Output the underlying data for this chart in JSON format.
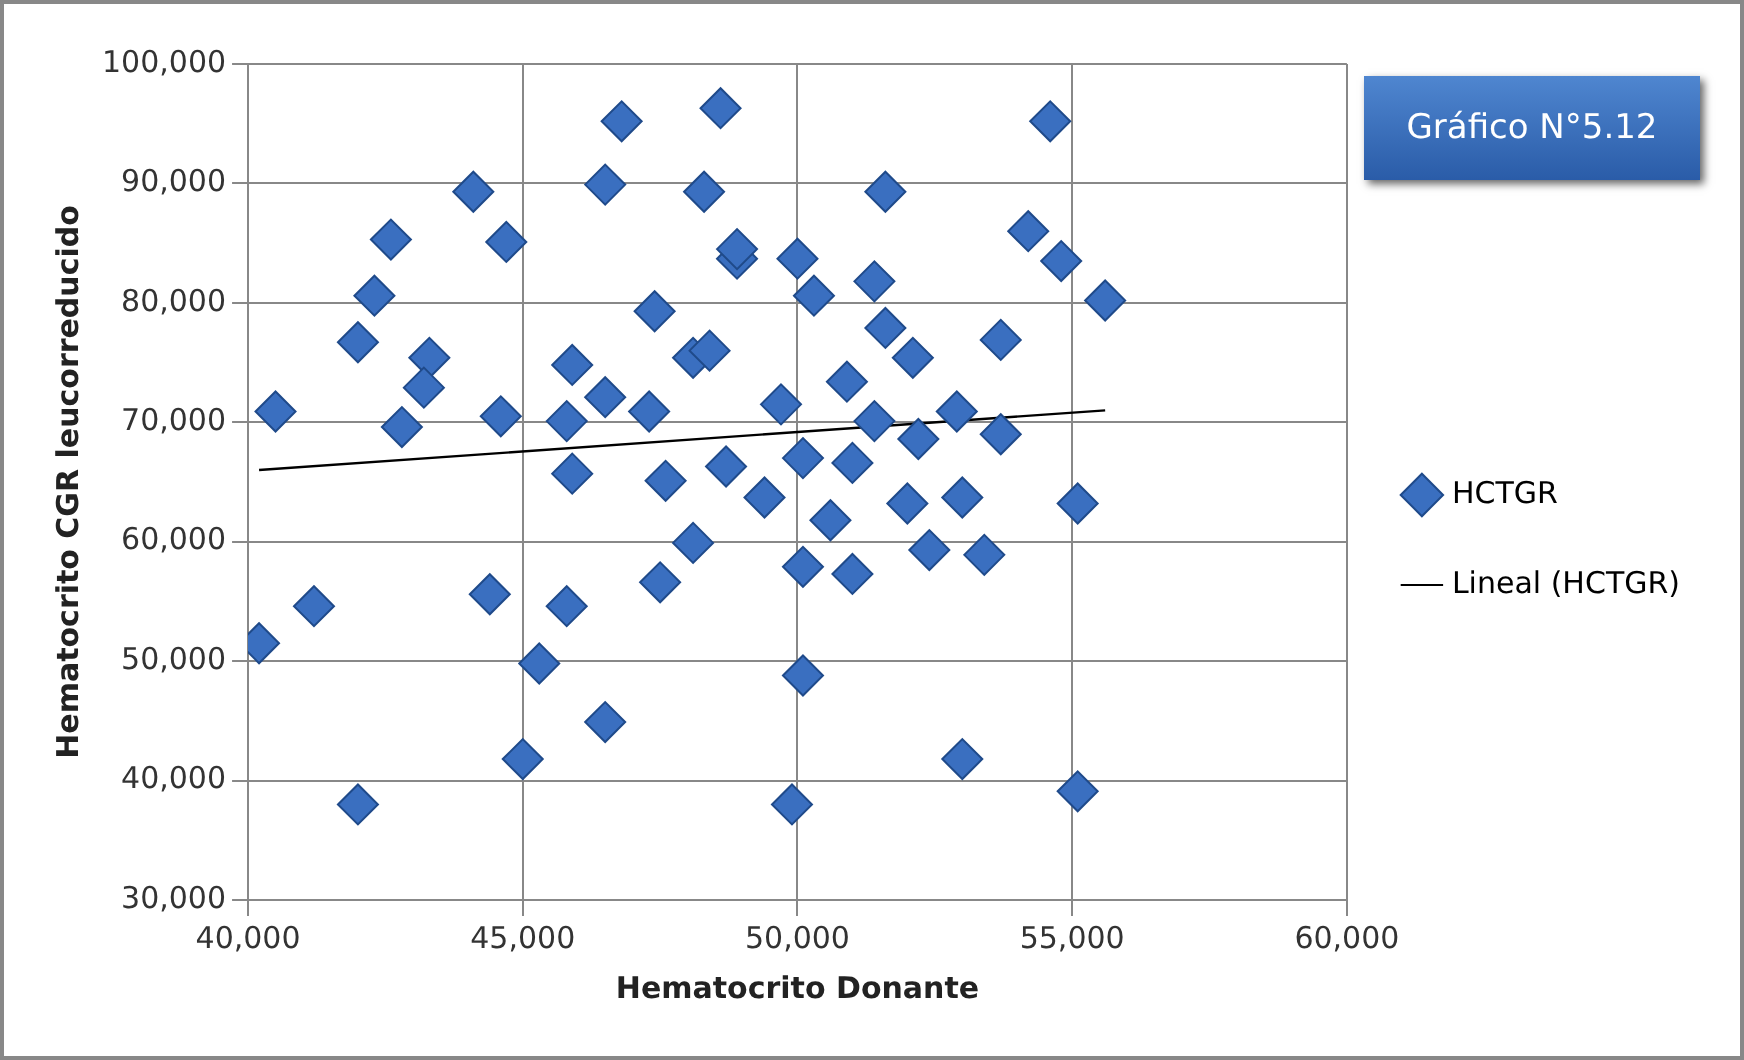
{
  "chart_data": {
    "type": "scatter",
    "title": "Gráfico N°5.12",
    "xlabel": "Hematocrito Donante",
    "ylabel": "Hematocrito CGR leucorreducido",
    "xlim": [
      40000,
      60000
    ],
    "ylim": [
      30000,
      100000
    ],
    "xticks": [
      {
        "value": 40000,
        "label": "40,000"
      },
      {
        "value": 45000,
        "label": "45,000"
      },
      {
        "value": 50000,
        "label": "50,000"
      },
      {
        "value": 55000,
        "label": "55,000"
      },
      {
        "value": 60000,
        "label": "60,000"
      }
    ],
    "yticks": [
      {
        "value": 30000,
        "label": "30,000"
      },
      {
        "value": 40000,
        "label": "40,000"
      },
      {
        "value": 50000,
        "label": "50,000"
      },
      {
        "value": 60000,
        "label": "60,000"
      },
      {
        "value": 70000,
        "label": "70,000"
      },
      {
        "value": 80000,
        "label": "80,000"
      },
      {
        "value": 90000,
        "label": "90,000"
      },
      {
        "value": 100000,
        "label": "100,000"
      }
    ],
    "grid": true,
    "legend": "right",
    "marker": "diamond",
    "series": [
      {
        "name": "HCTGR",
        "color": "#3a6fc0",
        "x": [
          40500,
          42600,
          42300,
          42000,
          44100,
          44700,
          43300,
          43200,
          42800,
          44600,
          46800,
          46500,
          48600,
          48300,
          48900,
          47400,
          48100,
          45900,
          46500,
          45800,
          47300,
          45900,
          54600,
          51600,
          48900,
          54200,
          54800,
          55600,
          50000,
          50300,
          51400,
          51600,
          52100,
          53700,
          48400,
          49700,
          50900,
          52900,
          53700,
          51400,
          48700,
          40200,
          41200,
          42000,
          44400,
          45300,
          45800,
          45000,
          46500,
          47500,
          48100,
          47600,
          55100,
          50100,
          51000,
          52400,
          53400,
          50100,
          49900,
          53000,
          55100,
          50600,
          52000,
          53000,
          49400,
          51000,
          52200,
          50100
        ],
        "values": [
          70900,
          85300,
          80600,
          76700,
          89300,
          85100,
          75400,
          72900,
          69600,
          70500,
          95200,
          89900,
          96300,
          89300,
          83700,
          79300,
          75400,
          74800,
          72100,
          70100,
          70900,
          65700,
          95200,
          89300,
          84500,
          86000,
          83500,
          80200,
          83700,
          80600,
          81800,
          77900,
          75400,
          76900,
          76000,
          71500,
          73400,
          70900,
          69000,
          70100,
          66300,
          51500,
          54600,
          38000,
          55600,
          49800,
          54600,
          41800,
          44900,
          56600,
          59900,
          65100,
          63200,
          57900,
          57300,
          59300,
          58900,
          48800,
          38000,
          41800,
          39100,
          61800,
          63200,
          63700,
          63700,
          66600,
          68600,
          67000
        ]
      },
      {
        "name": "Lineal (HCTGR)",
        "type": "line",
        "color": "#000000",
        "line_style": "solid",
        "marker": "none",
        "x": [
          40200,
          55600
        ],
        "values": [
          66000,
          71000
        ]
      }
    ]
  }
}
